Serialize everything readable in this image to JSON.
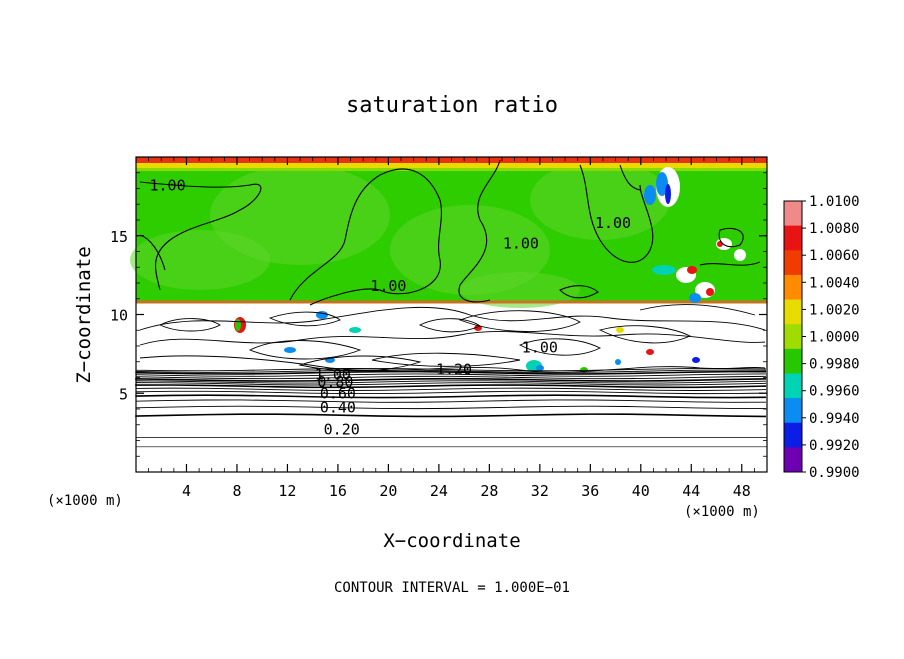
{
  "chart_data": {
    "type": "heatmap",
    "title": "saturation ratio",
    "xlabel": "X−coordinate",
    "ylabel": "Z−coordinate",
    "x_unit": "(×1000 m)",
    "x_unit_right": "(×1000 m)",
    "xlim": [
      0,
      50
    ],
    "ylim": [
      0,
      20
    ],
    "xticks": [
      4,
      8,
      12,
      16,
      20,
      24,
      28,
      32,
      36,
      40,
      44,
      48
    ],
    "yticks": [
      5,
      10,
      15
    ],
    "footer": "CONTOUR INTERVAL = 1.000E−01",
    "colorbar": {
      "labels": [
        "1.0100",
        "1.0080",
        "1.0060",
        "1.0040",
        "1.0020",
        "1.0000",
        "0.9980",
        "0.9960",
        "0.9940",
        "0.9920",
        "0.9900"
      ],
      "colors": [
        "#f08a8a",
        "#e81414",
        "#f03c00",
        "#ff8c00",
        "#e6dc00",
        "#a0dc00",
        "#28c800",
        "#00d2b4",
        "#0a8cf0",
        "#0a1ee6",
        "#6e00b4"
      ]
    },
    "contour_labels": [
      {
        "text": "1.00",
        "x": 2.5,
        "y": 18.2
      },
      {
        "text": "1.00",
        "x": 20.0,
        "y": 11.8
      },
      {
        "text": "1.00",
        "x": 30.5,
        "y": 14.5
      },
      {
        "text": "1.00",
        "x": 37.8,
        "y": 15.8
      },
      {
        "text": "1.00",
        "x": 32.0,
        "y": 7.9
      },
      {
        "text": "1.00",
        "x": 15.6,
        "y": 6.2
      },
      {
        "text": "1.20",
        "x": 25.2,
        "y": 6.5
      },
      {
        "text": "0.80",
        "x": 15.8,
        "y": 5.7
      },
      {
        "text": "0.60",
        "x": 16.0,
        "y": 5.0
      },
      {
        "text": "0.40",
        "x": 16.0,
        "y": 4.1
      },
      {
        "text": "0.20",
        "x": 16.3,
        "y": 2.7
      }
    ],
    "upper_layer_value": "1.0000",
    "lower_layer_top_z": 10.7
  }
}
